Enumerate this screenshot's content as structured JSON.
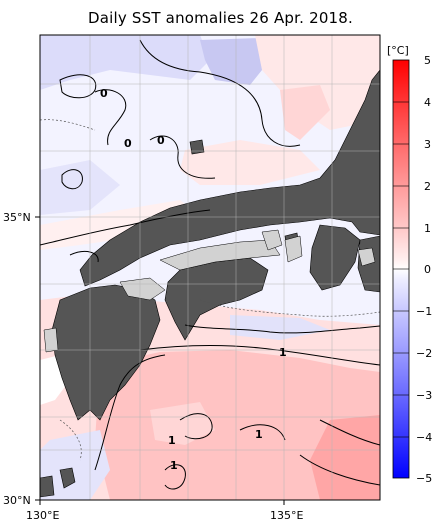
{
  "title": "Daily SST anomalies 26 Apr. 2018.",
  "map": {
    "lon_range": [
      130,
      136.5
    ],
    "lat_range": [
      30,
      36.9
    ],
    "x_ticks": [
      {
        "value": 130,
        "label": "130°E"
      },
      {
        "value": 135,
        "label": "135°E"
      }
    ],
    "y_ticks": [
      {
        "value": 35,
        "label": "35°N"
      },
      {
        "value": 30,
        "label": "30°N"
      }
    ],
    "contour_labels": [
      "0",
      "0",
      "0",
      "1",
      "1",
      "1",
      "1"
    ],
    "colors": {
      "land": "#555555",
      "lakes_islands_light": "#d2d2d2",
      "coast_outline": "#000000"
    }
  },
  "colorbar": {
    "unit": "[°C]",
    "ticks": [
      "5",
      "4",
      "3",
      "2",
      "1",
      "0",
      "−1",
      "−2",
      "−3",
      "−4",
      "−5"
    ],
    "colors": [
      "#ff0000",
      "#ff3b3b",
      "#ff6b6b",
      "#ff9797",
      "#ffbcbc",
      "#ffe0e0",
      "#ffffff",
      "#e2e2ff",
      "#c1c1ff",
      "#9b9bff",
      "#7373ff",
      "#4545ff",
      "#0000ff"
    ]
  }
}
